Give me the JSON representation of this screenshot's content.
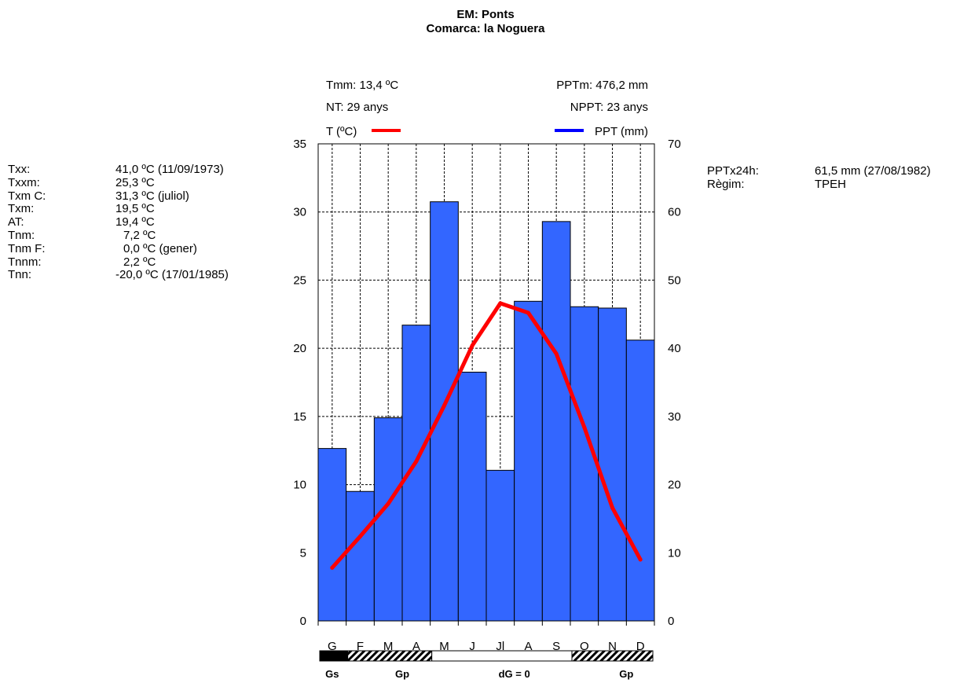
{
  "header": {
    "title": "EM: Ponts",
    "subtitle": "Comarca: la Noguera"
  },
  "left_stats": [
    {
      "label": "Txx:",
      "value": "41,0 ºC (11/09/1973)"
    },
    {
      "label": "Txxm:",
      "value": "25,3 ºC"
    },
    {
      "label": "Txm C:",
      "value": "31,3 ºC (juliol)"
    },
    {
      "label": "Txm:",
      "value": "19,5 ºC"
    },
    {
      "label": "AT:",
      "value": "19,4 ºC"
    },
    {
      "label": "Tnm:",
      "value": "7,2 ºC"
    },
    {
      "label": "Tnm F:",
      "value": "0,0 ºC (gener)"
    },
    {
      "label": "Tnnm:",
      "value": "2,2 ºC"
    },
    {
      "label": "Tnn:",
      "value": "-20,0 ºC (17/01/1985)"
    }
  ],
  "right_stats": [
    {
      "label": "PPTx24h:",
      "value": "61,5 mm (27/08/1982)"
    },
    {
      "label": "Règim:",
      "value": "TPEH"
    }
  ],
  "summary": {
    "tmm": "Tmm: 13,4 ºC",
    "nt": "NT: 29 anys",
    "pptm": "PPTm:  476,2 mm",
    "nppt": "NPPT: 23 anys"
  },
  "legend": {
    "temp_label": "T (ºC)",
    "ppt_label": "PPT (mm)",
    "position": "top"
  },
  "colors": {
    "bar": "#3366ff",
    "temp_line": "#ff0000",
    "ppt_legend": "#0000ff"
  },
  "chart_data": {
    "type": "bar",
    "categories": [
      "G",
      "F",
      "M",
      "A",
      "M",
      "J",
      "Jl",
      "A",
      "S",
      "O",
      "N",
      "D"
    ],
    "series": [
      {
        "name": "PPT (mm)",
        "type": "bar",
        "axis": "right",
        "values": [
          25.3,
          19.0,
          29.8,
          43.4,
          61.5,
          36.5,
          22.1,
          46.9,
          58.6,
          46.1,
          45.9,
          41.2
        ]
      },
      {
        "name": "T (ºC)",
        "type": "line",
        "axis": "left",
        "values": [
          3.9,
          6.2,
          8.6,
          11.7,
          15.8,
          20.2,
          23.3,
          22.6,
          19.6,
          14.2,
          8.3,
          4.5
        ]
      }
    ],
    "y_left": {
      "min": 0,
      "max": 35,
      "ticks": [
        0,
        5,
        10,
        15,
        20,
        25,
        30,
        35
      ]
    },
    "y_right": {
      "min": 0,
      "max": 70,
      "ticks": [
        0,
        10,
        20,
        30,
        40,
        50,
        60,
        70
      ]
    },
    "grid": true,
    "frost_strip": [
      {
        "pattern": "black",
        "months": [
          0
        ]
      },
      {
        "pattern": "hatched",
        "months": [
          1,
          2,
          3
        ]
      },
      {
        "pattern": "white",
        "months": [
          4,
          5,
          6,
          7,
          8
        ]
      },
      {
        "pattern": "hatched",
        "months": [
          9,
          10,
          11
        ]
      }
    ],
    "frost_labels": [
      {
        "text": "Gs",
        "month": 0
      },
      {
        "text": "Gp",
        "month": 2.5
      },
      {
        "text": "dG = 0",
        "month": 6.5
      },
      {
        "text": "Gp",
        "month": 10.5
      }
    ]
  }
}
